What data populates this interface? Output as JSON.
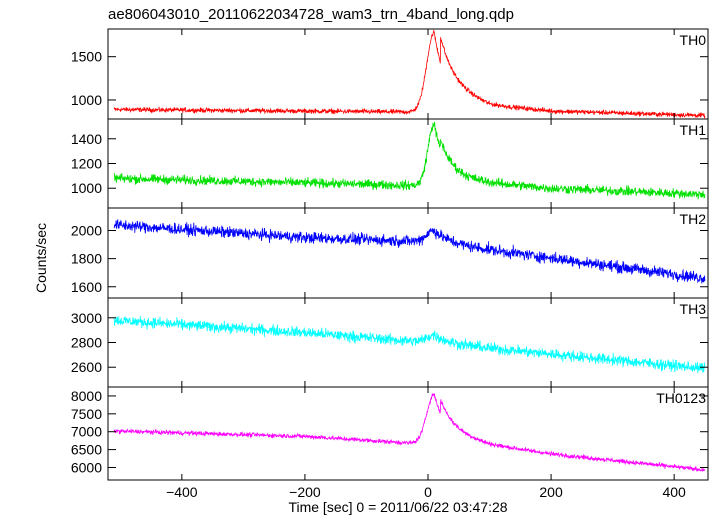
{
  "chart_data": {
    "type": "line",
    "title": "ae806043010_20110622034728_wam3_trn_4band_long.qdp",
    "xlabel": "Time [sec] 0 = 2011/06/22 03:47:28",
    "ylabel": "Counts/sec",
    "xlim": [
      -520,
      455
    ],
    "x_ticks": [
      -400,
      -200,
      0,
      200,
      400
    ],
    "x_tick_labels": [
      "−400",
      "−200",
      "0",
      "200",
      "400"
    ],
    "x_start": -510,
    "x_end": 450,
    "grid": false,
    "legend": "none",
    "panels": [
      {
        "name": "TH0",
        "color": "#ff0000",
        "ylim": [
          780,
          1820
        ],
        "yticks": [
          1000,
          1500
        ],
        "baseline_points": [
          [
            -510,
            890
          ],
          [
            0,
            860
          ],
          [
            450,
            820
          ]
        ],
        "noise_amplitude": 40,
        "peak": {
          "x": 10,
          "value": 1780,
          "rise": 12,
          "decay": 22
        },
        "tail_excess": [
          [
            20,
            300
          ],
          [
            100,
            90
          ],
          [
            200,
            30
          ],
          [
            450,
            0
          ]
        ]
      },
      {
        "name": "TH1",
        "color": "#00e000",
        "ylim": [
          840,
          1560
        ],
        "yticks": [
          1000,
          1200,
          1400
        ],
        "baseline_points": [
          [
            -510,
            1080
          ],
          [
            0,
            1020
          ],
          [
            450,
            950
          ]
        ],
        "noise_amplitude": 55,
        "peak": {
          "x": 10,
          "value": 1520,
          "rise": 10,
          "decay": 20
        },
        "tail_excess": [
          [
            20,
            80
          ],
          [
            100,
            40
          ],
          [
            200,
            10
          ],
          [
            450,
            0
          ]
        ]
      },
      {
        "name": "TH2",
        "color": "#0000ff",
        "ylim": [
          1520,
          2160
        ],
        "yticks": [
          1600,
          1800,
          2000
        ],
        "baseline_points": [
          [
            -510,
            2040
          ],
          [
            -200,
            1950
          ],
          [
            0,
            1920
          ],
          [
            450,
            1660
          ]
        ],
        "noise_amplitude": 60,
        "peak": {
          "x": 10,
          "value": 2000,
          "rise": 12,
          "decay": 25
        },
        "tail_excess": [
          [
            20,
            0
          ],
          [
            450,
            0
          ]
        ]
      },
      {
        "name": "TH3",
        "color": "#00ffff",
        "ylim": [
          2440,
          3160
        ],
        "yticks": [
          2600,
          2800,
          3000
        ],
        "baseline_points": [
          [
            -510,
            2980
          ],
          [
            -200,
            2880
          ],
          [
            0,
            2800
          ],
          [
            450,
            2590
          ]
        ],
        "noise_amplitude": 65,
        "peak": {
          "x": 10,
          "value": 2860,
          "rise": 12,
          "decay": 25
        },
        "tail_excess": [
          [
            20,
            0
          ],
          [
            450,
            0
          ]
        ]
      },
      {
        "name": "TH0123",
        "color": "#ff00ff",
        "ylim": [
          5650,
          8250
        ],
        "yticks": [
          6000,
          6500,
          7000,
          7500,
          8000
        ],
        "baseline_points": [
          [
            -510,
            7020
          ],
          [
            -200,
            6870
          ],
          [
            0,
            6650
          ],
          [
            450,
            5930
          ]
        ],
        "noise_amplitude": 90,
        "peak": {
          "x": 10,
          "value": 8050,
          "rise": 12,
          "decay": 22
        },
        "tail_excess": [
          [
            20,
            400
          ],
          [
            100,
            150
          ],
          [
            200,
            50
          ],
          [
            450,
            0
          ]
        ]
      }
    ]
  }
}
